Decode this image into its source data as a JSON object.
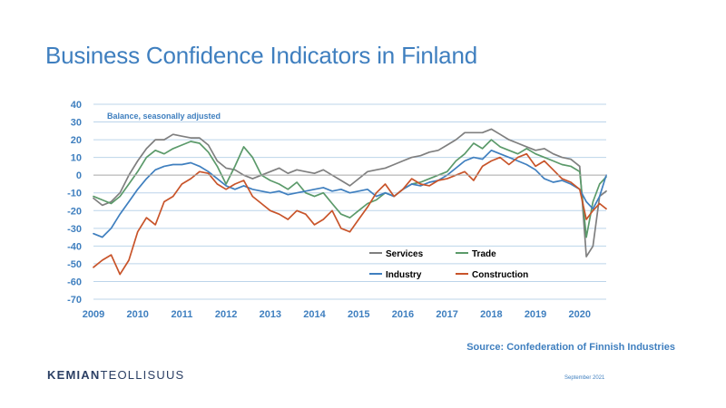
{
  "title": "Business Confidence Indicators in Finland",
  "source": "Source: Confederation of Finnish Industries",
  "logo": {
    "part1": "KEMIAN",
    "part2": "TEOLLISUUS"
  },
  "date": "September 2021",
  "colors": {
    "services": "#7f7f7f",
    "trade": "#5b9a6a",
    "industry": "#3f7fbf",
    "construction": "#c8542a",
    "axis_text": "#3f7fbf",
    "grid": "#bcd4ea"
  },
  "chart_data": {
    "type": "line",
    "annotation": "Balance, seasonally adjusted",
    "ylim": [
      -70,
      40
    ],
    "yticks": [
      -70,
      -60,
      -50,
      -40,
      -30,
      -20,
      -10,
      0,
      10,
      20,
      30,
      40
    ],
    "xlim": [
      2009,
      2020.6
    ],
    "xticks": [
      2009,
      2010,
      2011,
      2012,
      2013,
      2014,
      2015,
      2016,
      2017,
      2018,
      2019,
      2020
    ],
    "xtick_labels": [
      "2009",
      "2010",
      "2011",
      "2012",
      "2013",
      "2014",
      "2015",
      "2016",
      "2017",
      "2018",
      "2019",
      "2020"
    ],
    "grid": true,
    "legend_position": "center-right",
    "series": [
      {
        "name": "Services",
        "color": "#7f7f7f",
        "points": [
          [
            2009.0,
            -13
          ],
          [
            2009.2,
            -17
          ],
          [
            2009.4,
            -15
          ],
          [
            2009.6,
            -10
          ],
          [
            2009.8,
            0
          ],
          [
            2010.0,
            8
          ],
          [
            2010.2,
            15
          ],
          [
            2010.4,
            20
          ],
          [
            2010.6,
            20
          ],
          [
            2010.8,
            23
          ],
          [
            2011.0,
            22
          ],
          [
            2011.2,
            21
          ],
          [
            2011.4,
            21
          ],
          [
            2011.6,
            17
          ],
          [
            2011.8,
            8
          ],
          [
            2012.0,
            4
          ],
          [
            2012.2,
            3
          ],
          [
            2012.4,
            0
          ],
          [
            2012.6,
            -2
          ],
          [
            2012.8,
            0
          ],
          [
            2013.0,
            2
          ],
          [
            2013.2,
            4
          ],
          [
            2013.4,
            1
          ],
          [
            2013.6,
            3
          ],
          [
            2013.8,
            2
          ],
          [
            2014.0,
            1
          ],
          [
            2014.2,
            3
          ],
          [
            2014.4,
            0
          ],
          [
            2014.6,
            -3
          ],
          [
            2014.8,
            -6
          ],
          [
            2015.0,
            -2
          ],
          [
            2015.2,
            2
          ],
          [
            2015.4,
            3
          ],
          [
            2015.6,
            4
          ],
          [
            2015.8,
            6
          ],
          [
            2016.0,
            8
          ],
          [
            2016.2,
            10
          ],
          [
            2016.4,
            11
          ],
          [
            2016.6,
            13
          ],
          [
            2016.8,
            14
          ],
          [
            2017.0,
            17
          ],
          [
            2017.2,
            20
          ],
          [
            2017.4,
            24
          ],
          [
            2017.6,
            24
          ],
          [
            2017.8,
            24
          ],
          [
            2018.0,
            26
          ],
          [
            2018.2,
            23
          ],
          [
            2018.4,
            20
          ],
          [
            2018.6,
            18
          ],
          [
            2018.8,
            16
          ],
          [
            2019.0,
            14
          ],
          [
            2019.2,
            15
          ],
          [
            2019.4,
            12
          ],
          [
            2019.6,
            10
          ],
          [
            2019.8,
            9
          ],
          [
            2020.0,
            5
          ],
          [
            2020.15,
            -46
          ],
          [
            2020.3,
            -40
          ],
          [
            2020.45,
            -12
          ],
          [
            2020.6,
            -9
          ]
        ]
      },
      {
        "name": "Trade",
        "color": "#5b9a6a",
        "points": [
          [
            2009.0,
            -12
          ],
          [
            2009.2,
            -14
          ],
          [
            2009.4,
            -16
          ],
          [
            2009.6,
            -12
          ],
          [
            2009.8,
            -5
          ],
          [
            2010.0,
            2
          ],
          [
            2010.2,
            10
          ],
          [
            2010.4,
            14
          ],
          [
            2010.6,
            12
          ],
          [
            2010.8,
            15
          ],
          [
            2011.0,
            17
          ],
          [
            2011.2,
            19
          ],
          [
            2011.4,
            18
          ],
          [
            2011.6,
            13
          ],
          [
            2011.8,
            5
          ],
          [
            2012.0,
            -5
          ],
          [
            2012.2,
            5
          ],
          [
            2012.4,
            16
          ],
          [
            2012.6,
            10
          ],
          [
            2012.8,
            0
          ],
          [
            2013.0,
            -3
          ],
          [
            2013.2,
            -5
          ],
          [
            2013.4,
            -8
          ],
          [
            2013.6,
            -4
          ],
          [
            2013.8,
            -10
          ],
          [
            2014.0,
            -12
          ],
          [
            2014.2,
            -10
          ],
          [
            2014.4,
            -16
          ],
          [
            2014.6,
            -22
          ],
          [
            2014.8,
            -24
          ],
          [
            2015.0,
            -20
          ],
          [
            2015.2,
            -16
          ],
          [
            2015.4,
            -14
          ],
          [
            2015.6,
            -10
          ],
          [
            2015.8,
            -12
          ],
          [
            2016.0,
            -8
          ],
          [
            2016.2,
            -5
          ],
          [
            2016.4,
            -4
          ],
          [
            2016.6,
            -2
          ],
          [
            2016.8,
            0
          ],
          [
            2017.0,
            2
          ],
          [
            2017.2,
            8
          ],
          [
            2017.4,
            12
          ],
          [
            2017.6,
            18
          ],
          [
            2017.8,
            15
          ],
          [
            2018.0,
            20
          ],
          [
            2018.2,
            16
          ],
          [
            2018.4,
            14
          ],
          [
            2018.6,
            12
          ],
          [
            2018.8,
            15
          ],
          [
            2019.0,
            12
          ],
          [
            2019.2,
            10
          ],
          [
            2019.4,
            8
          ],
          [
            2019.6,
            6
          ],
          [
            2019.8,
            5
          ],
          [
            2020.0,
            2
          ],
          [
            2020.15,
            -35
          ],
          [
            2020.3,
            -15
          ],
          [
            2020.45,
            -5
          ],
          [
            2020.6,
            -1
          ]
        ]
      },
      {
        "name": "Industry",
        "color": "#3f7fbf",
        "points": [
          [
            2009.0,
            -33
          ],
          [
            2009.2,
            -35
          ],
          [
            2009.4,
            -30
          ],
          [
            2009.6,
            -22
          ],
          [
            2009.8,
            -15
          ],
          [
            2010.0,
            -8
          ],
          [
            2010.2,
            -2
          ],
          [
            2010.4,
            3
          ],
          [
            2010.6,
            5
          ],
          [
            2010.8,
            6
          ],
          [
            2011.0,
            6
          ],
          [
            2011.2,
            7
          ],
          [
            2011.4,
            5
          ],
          [
            2011.6,
            2
          ],
          [
            2011.8,
            -2
          ],
          [
            2012.0,
            -6
          ],
          [
            2012.2,
            -8
          ],
          [
            2012.4,
            -6
          ],
          [
            2012.6,
            -8
          ],
          [
            2012.8,
            -9
          ],
          [
            2013.0,
            -10
          ],
          [
            2013.2,
            -9
          ],
          [
            2013.4,
            -11
          ],
          [
            2013.6,
            -10
          ],
          [
            2013.8,
            -9
          ],
          [
            2014.0,
            -8
          ],
          [
            2014.2,
            -7
          ],
          [
            2014.4,
            -9
          ],
          [
            2014.6,
            -8
          ],
          [
            2014.8,
            -10
          ],
          [
            2015.0,
            -9
          ],
          [
            2015.2,
            -8
          ],
          [
            2015.4,
            -12
          ],
          [
            2015.6,
            -10
          ],
          [
            2015.8,
            -12
          ],
          [
            2016.0,
            -8
          ],
          [
            2016.2,
            -5
          ],
          [
            2016.4,
            -6
          ],
          [
            2016.6,
            -4
          ],
          [
            2016.8,
            -3
          ],
          [
            2017.0,
            0
          ],
          [
            2017.2,
            4
          ],
          [
            2017.4,
            8
          ],
          [
            2017.6,
            10
          ],
          [
            2017.8,
            9
          ],
          [
            2018.0,
            14
          ],
          [
            2018.2,
            12
          ],
          [
            2018.4,
            10
          ],
          [
            2018.6,
            8
          ],
          [
            2018.8,
            6
          ],
          [
            2019.0,
            3
          ],
          [
            2019.2,
            -2
          ],
          [
            2019.4,
            -4
          ],
          [
            2019.6,
            -3
          ],
          [
            2019.8,
            -5
          ],
          [
            2020.0,
            -8
          ],
          [
            2020.15,
            -15
          ],
          [
            2020.3,
            -19
          ],
          [
            2020.45,
            -12
          ],
          [
            2020.6,
            0
          ]
        ]
      },
      {
        "name": "Construction",
        "color": "#c8542a",
        "points": [
          [
            2009.0,
            -52
          ],
          [
            2009.2,
            -48
          ],
          [
            2009.4,
            -45
          ],
          [
            2009.6,
            -56
          ],
          [
            2009.8,
            -48
          ],
          [
            2010.0,
            -32
          ],
          [
            2010.2,
            -24
          ],
          [
            2010.4,
            -28
          ],
          [
            2010.6,
            -15
          ],
          [
            2010.8,
            -12
          ],
          [
            2011.0,
            -5
          ],
          [
            2011.2,
            -2
          ],
          [
            2011.4,
            2
          ],
          [
            2011.6,
            1
          ],
          [
            2011.8,
            -5
          ],
          [
            2012.0,
            -8
          ],
          [
            2012.2,
            -5
          ],
          [
            2012.4,
            -3
          ],
          [
            2012.6,
            -12
          ],
          [
            2012.8,
            -16
          ],
          [
            2013.0,
            -20
          ],
          [
            2013.2,
            -22
          ],
          [
            2013.4,
            -25
          ],
          [
            2013.6,
            -20
          ],
          [
            2013.8,
            -22
          ],
          [
            2014.0,
            -28
          ],
          [
            2014.2,
            -25
          ],
          [
            2014.4,
            -20
          ],
          [
            2014.6,
            -30
          ],
          [
            2014.8,
            -32
          ],
          [
            2015.0,
            -25
          ],
          [
            2015.2,
            -18
          ],
          [
            2015.4,
            -10
          ],
          [
            2015.6,
            -5
          ],
          [
            2015.8,
            -12
          ],
          [
            2016.0,
            -8
          ],
          [
            2016.2,
            -2
          ],
          [
            2016.4,
            -5
          ],
          [
            2016.6,
            -6
          ],
          [
            2016.8,
            -3
          ],
          [
            2017.0,
            -2
          ],
          [
            2017.2,
            0
          ],
          [
            2017.4,
            2
          ],
          [
            2017.6,
            -3
          ],
          [
            2017.8,
            5
          ],
          [
            2018.0,
            8
          ],
          [
            2018.2,
            10
          ],
          [
            2018.4,
            6
          ],
          [
            2018.6,
            10
          ],
          [
            2018.8,
            12
          ],
          [
            2019.0,
            5
          ],
          [
            2019.2,
            8
          ],
          [
            2019.4,
            3
          ],
          [
            2019.6,
            -2
          ],
          [
            2019.8,
            -4
          ],
          [
            2020.0,
            -8
          ],
          [
            2020.15,
            -25
          ],
          [
            2020.3,
            -20
          ],
          [
            2020.45,
            -16
          ],
          [
            2020.6,
            -19
          ]
        ]
      }
    ]
  }
}
